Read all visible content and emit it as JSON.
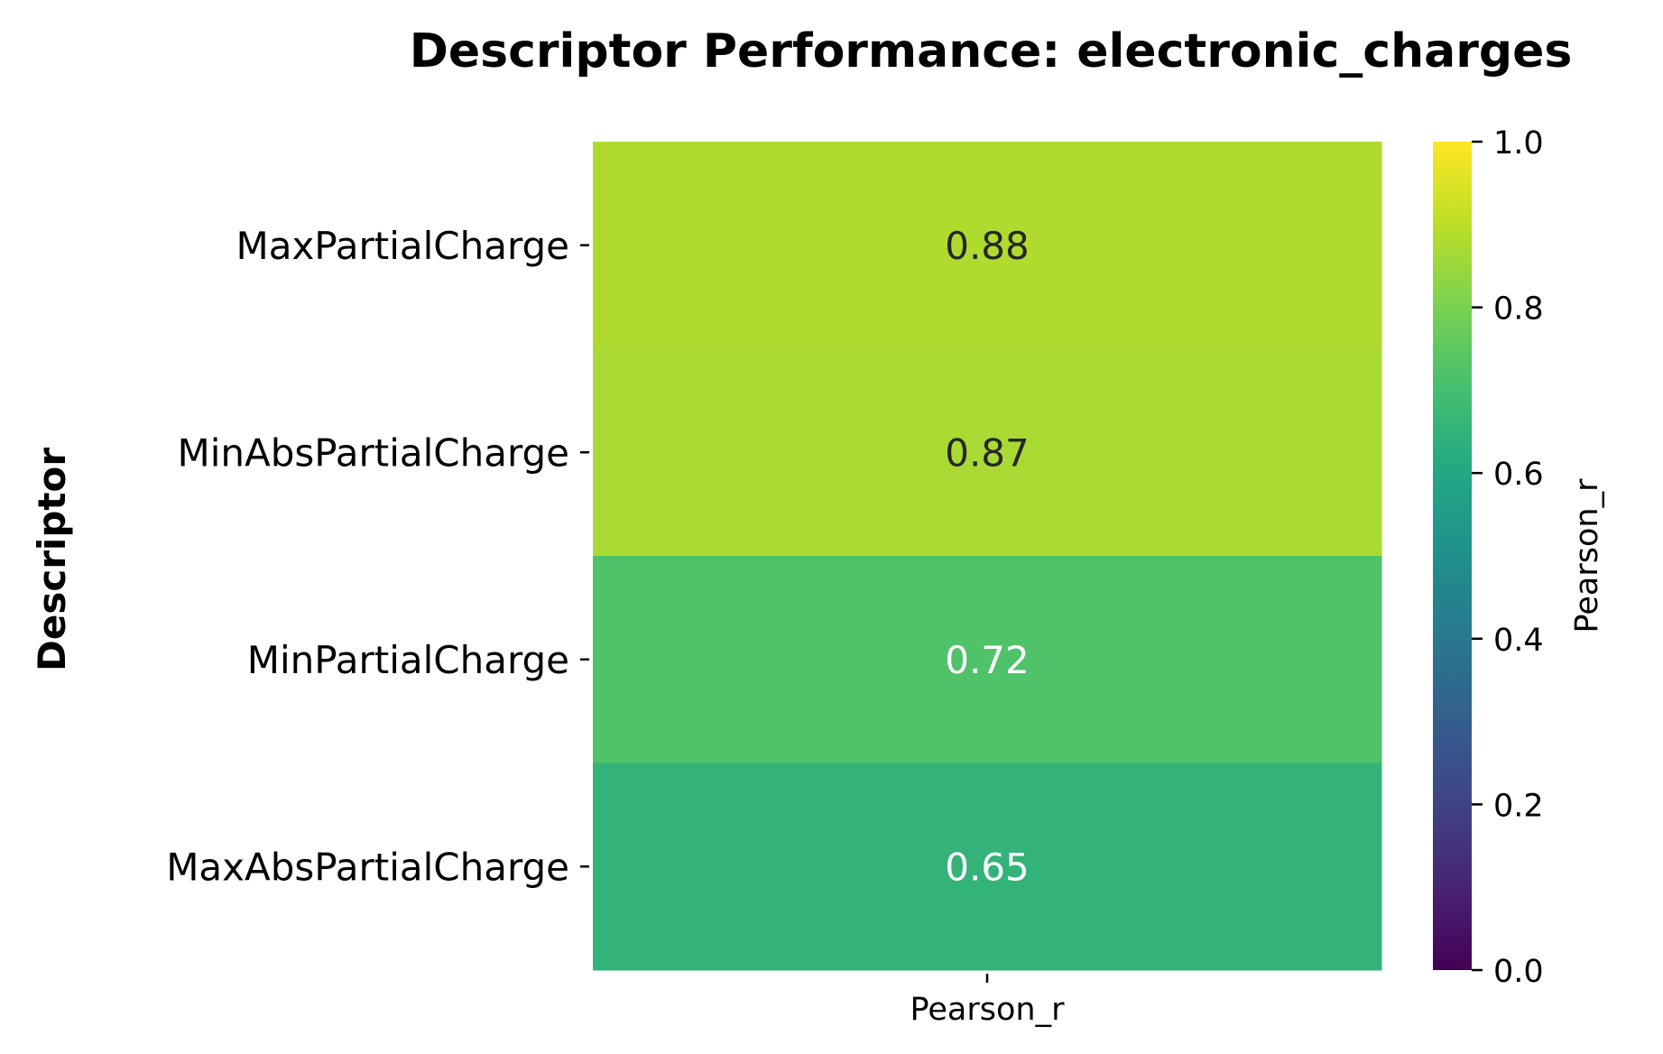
{
  "chart_data": {
    "type": "heatmap",
    "title": "Descriptor Performance: electronic_charges",
    "ylabel": "Descriptor",
    "xlabel": "",
    "columns": [
      "Pearson_r"
    ],
    "rows": [
      "MaxPartialCharge",
      "MinAbsPartialCharge",
      "MinPartialCharge",
      "MaxAbsPartialCharge"
    ],
    "values": [
      [
        0.88
      ],
      [
        0.87
      ],
      [
        0.72
      ],
      [
        0.65
      ]
    ],
    "value_labels": [
      "0.88",
      "0.87",
      "0.72",
      "0.65"
    ],
    "colormap": "viridis",
    "colorbar": {
      "label": "Pearson_r",
      "range": [
        0.0,
        1.0
      ],
      "ticks": [
        0.0,
        0.2,
        0.4,
        0.6,
        0.8,
        1.0
      ],
      "tick_labels": [
        "0.0",
        "0.2",
        "0.4",
        "0.6",
        "0.8",
        "1.0"
      ]
    }
  }
}
